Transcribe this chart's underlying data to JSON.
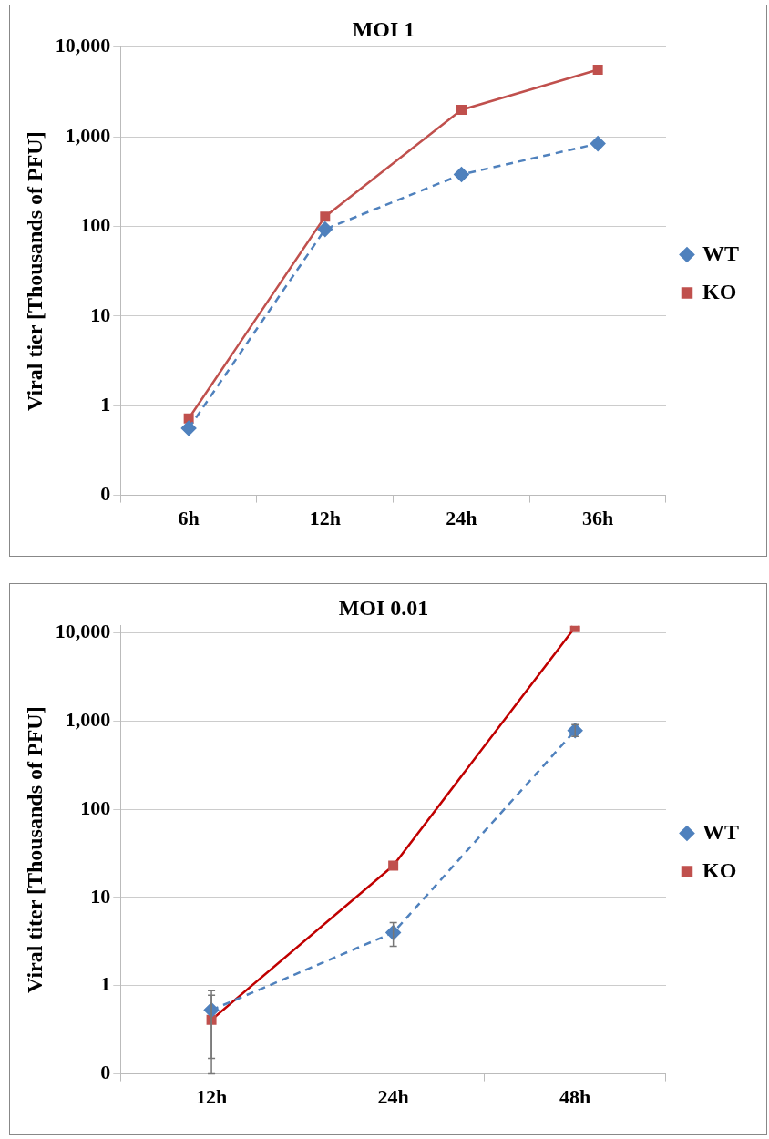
{
  "chart_data": [
    {
      "type": "line",
      "title": "MOI 1",
      "ylabel": "Viral tier [Thousands of PFU]",
      "categories": [
        "6h",
        "12h",
        "24h",
        "36h"
      ],
      "log": "y",
      "ylim": [
        0.1,
        10000
      ],
      "yticks": [
        {
          "value": 0.1,
          "label": "0"
        },
        1,
        10,
        100,
        {
          "value": 1000,
          "label": "1,000"
        },
        {
          "value": 10000,
          "label": "10,000"
        }
      ],
      "grid": "y",
      "legend": "right",
      "series": [
        {
          "name": "WT",
          "color": "#4f81bd",
          "values": [
            0.56,
            93,
            380,
            840
          ],
          "marker": "diamond",
          "line_style": "dashed"
        },
        {
          "name": "KO",
          "color": "#c0504d",
          "values": [
            0.72,
            129,
            2000,
            5600
          ],
          "marker": "square",
          "line_style": "solid"
        }
      ]
    },
    {
      "type": "line",
      "title": "MOI 0.01",
      "ylabel": "Viral titer [Thousands of PFU]",
      "categories": [
        "12h",
        "24h",
        "48h"
      ],
      "log": "y",
      "ylim": [
        0.1,
        12000
      ],
      "yticks": [
        {
          "value": 0.1,
          "label": "0"
        },
        1,
        10,
        100,
        {
          "value": 1000,
          "label": "1,000"
        },
        {
          "value": 10000,
          "label": "10,000"
        }
      ],
      "grid": "y",
      "legend": "right",
      "series": [
        {
          "name": "WT",
          "color": "#4f81bd",
          "values": [
            0.53,
            4.0,
            780
          ],
          "errors": [
            [
              0.15,
              0.88
            ],
            [
              2.8,
              5.2
            ],
            [
              670,
              910
            ]
          ],
          "marker": "diamond",
          "line_style": "dashed"
        },
        {
          "name": "KO",
          "color": "#c00000",
          "values": [
            0.41,
            23,
            11600
          ],
          "errors": [
            [
              0.1,
              0.78
            ],
            null,
            null
          ],
          "marker": "square",
          "line_style": "solid"
        }
      ]
    }
  ]
}
